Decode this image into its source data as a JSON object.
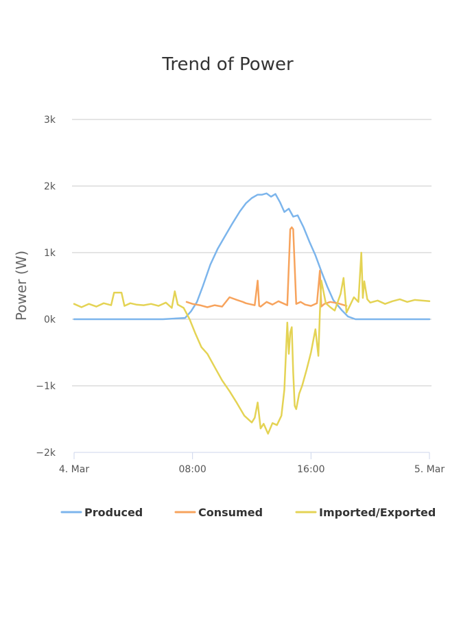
{
  "chart_data": {
    "type": "line",
    "title": "Trend of Power",
    "ylabel": "Power (W)",
    "xlabel": "",
    "ylim": [
      -2000,
      3000
    ],
    "yticks": [
      {
        "value": -2000,
        "label": "−2k"
      },
      {
        "value": -1000,
        "label": "−1k"
      },
      {
        "value": 0,
        "label": "0k"
      },
      {
        "value": 1000,
        "label": "1k"
      },
      {
        "value": 2000,
        "label": "2k"
      },
      {
        "value": 3000,
        "label": "3k"
      }
    ],
    "xlim": [
      0,
      24
    ],
    "xticks": [
      {
        "value": 0,
        "label": "4. Mar"
      },
      {
        "value": 8,
        "label": "08:00"
      },
      {
        "value": 16,
        "label": "16:00"
      },
      {
        "value": 24,
        "label": "5. Mar"
      }
    ],
    "grid": true,
    "legend": "bottom",
    "series": [
      {
        "name": "Produced",
        "color": "#7cb5ec",
        "x": [
          0,
          6,
          7.5,
          7.9,
          8.3,
          8.7,
          9.2,
          9.7,
          10.2,
          10.7,
          11.2,
          11.6,
          12.0,
          12.4,
          12.7,
          13.0,
          13.3,
          13.6,
          13.9,
          14.2,
          14.5,
          14.8,
          15.1,
          15.5,
          15.9,
          16.3,
          16.7,
          17.1,
          17.5,
          18.1,
          18.5,
          19,
          24
        ],
        "y": [
          0,
          0,
          20,
          120,
          260,
          500,
          820,
          1060,
          1250,
          1440,
          1620,
          1740,
          1820,
          1870,
          1870,
          1890,
          1840,
          1880,
          1760,
          1610,
          1660,
          1540,
          1560,
          1380,
          1160,
          960,
          720,
          490,
          290,
          130,
          40,
          0,
          0
        ]
      },
      {
        "name": "Consumed",
        "color": "#f7a35c",
        "x": [
          7.6,
          8.0,
          8.5,
          9.0,
          9.5,
          10.0,
          10.5,
          11.0,
          11.4,
          11.6,
          11.8,
          12.2,
          12.4,
          12.5,
          12.6,
          13.0,
          13.4,
          13.8,
          14.2,
          14.4,
          14.6,
          14.7,
          14.8,
          15.0,
          15.3,
          15.6,
          16.0,
          16.4,
          16.6,
          16.7,
          16.9,
          17.3,
          17.8,
          18.4
        ],
        "y": [
          260,
          230,
          210,
          180,
          210,
          190,
          330,
          290,
          260,
          240,
          230,
          210,
          580,
          200,
          190,
          260,
          220,
          270,
          230,
          210,
          1350,
          1380,
          1350,
          230,
          260,
          220,
          200,
          240,
          730,
          190,
          230,
          260,
          240,
          200
        ]
      },
      {
        "name": "Imported/Exported",
        "color": "#e4d354",
        "x": [
          0,
          0.5,
          1,
          1.5,
          2,
          2.5,
          2.7,
          3.2,
          3.4,
          3.8,
          4.2,
          4.7,
          5.2,
          5.7,
          6.2,
          6.6,
          6.8,
          7.0,
          7.4,
          7.8,
          8.2,
          8.6,
          9.0,
          9.5,
          10.0,
          10.5,
          11.0,
          11.5,
          12.0,
          12.2,
          12.4,
          12.6,
          12.8,
          13.1,
          13.4,
          13.7,
          14.0,
          14.2,
          14.4,
          14.5,
          14.6,
          14.7,
          14.8,
          14.9,
          15.0,
          15.2,
          15.4,
          15.7,
          16.0,
          16.3,
          16.5,
          16.6,
          16.7,
          17.0,
          17.3,
          17.6,
          18.0,
          18.2,
          18.4,
          18.6,
          18.9,
          19.2,
          19.4,
          19.5,
          19.6,
          19.8,
          20.0,
          20.5,
          21,
          21.5,
          22,
          22.5,
          23,
          24
        ],
        "y": [
          230,
          180,
          230,
          190,
          240,
          210,
          400,
          400,
          200,
          240,
          220,
          210,
          230,
          200,
          250,
          170,
          420,
          220,
          170,
          0,
          -220,
          -420,
          -520,
          -720,
          -920,
          -1080,
          -1260,
          -1450,
          -1550,
          -1480,
          -1250,
          -1640,
          -1570,
          -1720,
          -1560,
          -1590,
          -1450,
          -1060,
          -50,
          -520,
          -200,
          -120,
          -800,
          -1300,
          -1350,
          -1120,
          -1000,
          -760,
          -500,
          -150,
          -550,
          100,
          580,
          240,
          180,
          130,
          380,
          620,
          100,
          190,
          330,
          260,
          1000,
          320,
          570,
          300,
          250,
          280,
          230,
          270,
          300,
          260,
          290,
          270
        ]
      }
    ]
  }
}
